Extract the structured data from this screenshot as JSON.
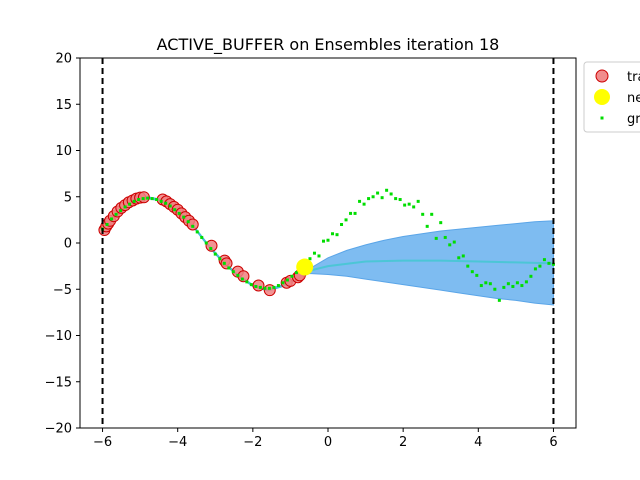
{
  "chart_data": {
    "type": "scatter",
    "title": "ACTIVE_BUFFER on Ensembles iteration 18",
    "xlabel": "",
    "ylabel": "",
    "xlim": [
      -6.6,
      6.6
    ],
    "ylim": [
      -20,
      20
    ],
    "xticks": [
      -6,
      -4,
      -2,
      0,
      2,
      4,
      6
    ],
    "yticks": [
      -20,
      -15,
      -10,
      -5,
      0,
      5,
      10,
      15,
      20
    ],
    "grid": false,
    "legend_position": "outside-top-right",
    "vlines": [
      -6,
      6
    ],
    "legend": [
      {
        "label": "tra",
        "marker": "circle",
        "color": "#f08080"
      },
      {
        "label": "ne",
        "marker": "circle",
        "color": "#ffff00"
      },
      {
        "label": "gr",
        "marker": "dot",
        "color": "#00dd00"
      }
    ],
    "series": [
      {
        "kind": "uncertainty-band",
        "color": "#77b8f0",
        "x": [
          -6.0,
          -5.6,
          -5.2,
          -4.8,
          -4.4,
          -4.0,
          -3.6,
          -3.2,
          -2.8,
          -2.4,
          -2.0,
          -1.6,
          -1.2,
          -0.8,
          -0.5,
          0.0,
          0.5,
          1.0,
          1.5,
          2.0,
          2.5,
          3.0,
          3.5,
          4.0,
          4.5,
          5.0,
          5.5,
          6.0
        ],
        "upper": [
          1.5,
          3.3,
          4.6,
          5.0,
          4.7,
          3.6,
          2.0,
          -0.1,
          -1.9,
          -3.4,
          -4.5,
          -5.0,
          -4.5,
          -3.7,
          -2.8,
          -1.6,
          -0.8,
          -0.2,
          0.3,
          0.7,
          1.0,
          1.3,
          1.5,
          1.7,
          1.9,
          2.1,
          2.3,
          2.4
        ],
        "lower": [
          1.3,
          3.1,
          4.4,
          4.8,
          4.5,
          3.4,
          1.8,
          -0.3,
          -2.1,
          -3.6,
          -4.7,
          -5.2,
          -4.7,
          -3.9,
          -3.3,
          -3.4,
          -3.6,
          -3.9,
          -4.2,
          -4.5,
          -4.8,
          -5.1,
          -5.4,
          -5.7,
          -6.0,
          -6.2,
          -6.5,
          -6.7
        ]
      },
      {
        "kind": "mean-line",
        "color": "#40c8d0",
        "x": [
          -6.0,
          -5.6,
          -5.2,
          -4.8,
          -4.4,
          -4.0,
          -3.6,
          -3.2,
          -2.8,
          -2.4,
          -2.0,
          -1.6,
          -1.2,
          -0.8,
          -0.5,
          0.0,
          1.0,
          2.0,
          3.0,
          4.0,
          5.0,
          6.0
        ],
        "y": [
          1.4,
          3.2,
          4.5,
          4.9,
          4.6,
          3.5,
          1.9,
          -0.2,
          -2.0,
          -3.5,
          -4.6,
          -5.1,
          -4.6,
          -3.8,
          -3.0,
          -2.5,
          -2.0,
          -1.9,
          -1.9,
          -2.0,
          -2.1,
          -2.2
        ]
      },
      {
        "name": "tra",
        "kind": "train",
        "color": "#f08080",
        "edge": "#cc0000",
        "x": [
          -5.95,
          -5.9,
          -5.85,
          -5.8,
          -5.7,
          -5.6,
          -5.5,
          -5.4,
          -5.3,
          -5.2,
          -5.1,
          -5.0,
          -4.9,
          -4.4,
          -4.3,
          -4.2,
          -4.1,
          -4.0,
          -3.9,
          -3.8,
          -3.7,
          -3.6,
          -3.1,
          -2.75,
          -2.7,
          -2.4,
          -2.25,
          -1.85,
          -1.55,
          -1.1,
          -1.0,
          -0.8,
          -0.75
        ],
        "y": [
          1.4,
          1.8,
          2.1,
          2.4,
          2.9,
          3.4,
          3.8,
          4.1,
          4.4,
          4.6,
          4.8,
          4.9,
          4.95,
          4.7,
          4.5,
          4.2,
          3.9,
          3.6,
          3.2,
          2.8,
          2.4,
          2.0,
          -0.3,
          -1.9,
          -2.2,
          -3.1,
          -3.6,
          -4.6,
          -5.1,
          -4.3,
          -4.1,
          -3.7,
          -3.5
        ]
      },
      {
        "name": "ne",
        "kind": "new",
        "color": "#ffff00",
        "x": [
          -0.62
        ],
        "y": [
          -2.6
        ]
      },
      {
        "name": "gr",
        "kind": "ground-truth",
        "color": "#00dd00",
        "x": [
          -6.0,
          -5.88,
          -5.76,
          -5.64,
          -5.52,
          -5.4,
          -5.28,
          -5.16,
          -5.04,
          -4.92,
          -4.8,
          -4.68,
          -4.56,
          -4.44,
          -4.32,
          -4.2,
          -4.08,
          -3.96,
          -3.84,
          -3.72,
          -3.6,
          -3.48,
          -3.36,
          -3.24,
          -3.12,
          -3.0,
          -2.88,
          -2.76,
          -2.64,
          -2.52,
          -2.4,
          -2.28,
          -2.16,
          -2.04,
          -1.92,
          -1.8,
          -1.68,
          -1.56,
          -1.44,
          -1.32,
          -1.2,
          -1.08,
          -0.96,
          -0.84,
          -0.72,
          -0.6,
          -0.48,
          -0.36,
          -0.24,
          -0.12,
          0.0,
          0.12,
          0.24,
          0.36,
          0.48,
          0.6,
          0.72,
          0.84,
          0.96,
          1.08,
          1.2,
          1.32,
          1.44,
          1.56,
          1.68,
          1.8,
          1.92,
          2.04,
          2.16,
          2.28,
          2.4,
          2.52,
          2.64,
          2.76,
          2.88,
          3.0,
          3.12,
          3.24,
          3.36,
          3.48,
          3.6,
          3.72,
          3.84,
          3.96,
          4.08,
          4.2,
          4.32,
          4.44,
          4.56,
          4.68,
          4.8,
          4.92,
          5.04,
          5.16,
          5.28,
          5.4,
          5.52,
          5.64,
          5.76,
          5.88,
          6.0
        ],
        "y": [
          1.5,
          2.0,
          2.6,
          3.1,
          3.5,
          3.9,
          4.2,
          4.5,
          4.7,
          4.8,
          4.85,
          4.8,
          4.7,
          4.5,
          4.3,
          4.0,
          3.6,
          3.2,
          2.8,
          2.3,
          1.8,
          1.2,
          0.6,
          0.0,
          -0.6,
          -1.2,
          -1.7,
          -2.2,
          -2.7,
          -3.1,
          -3.5,
          -3.9,
          -4.2,
          -4.5,
          -4.7,
          -4.8,
          -4.9,
          -4.9,
          -4.8,
          -4.6,
          -4.3,
          -4.0,
          -3.6,
          -3.2,
          -2.7,
          -2.2,
          -1.7,
          -1.1,
          -1.4,
          0.2,
          0.3,
          1.0,
          0.9,
          2.0,
          2.5,
          3.2,
          3.2,
          4.5,
          4.2,
          4.8,
          5.0,
          5.4,
          4.9,
          5.7,
          5.3,
          4.8,
          4.7,
          4.1,
          4.2,
          3.9,
          4.5,
          3.1,
          1.8,
          3.1,
          0.5,
          2.2,
          0.6,
          -0.2,
          0.1,
          -1.6,
          -1.4,
          -2.5,
          -3.1,
          -3.5,
          -4.6,
          -4.3,
          -4.4,
          -5.0,
          -6.2,
          -4.8,
          -4.4,
          -4.7,
          -4.3,
          -4.6,
          -4.2,
          -3.6,
          -2.8,
          -2.5,
          -1.8,
          -2.2,
          -2.3
        ]
      }
    ]
  }
}
